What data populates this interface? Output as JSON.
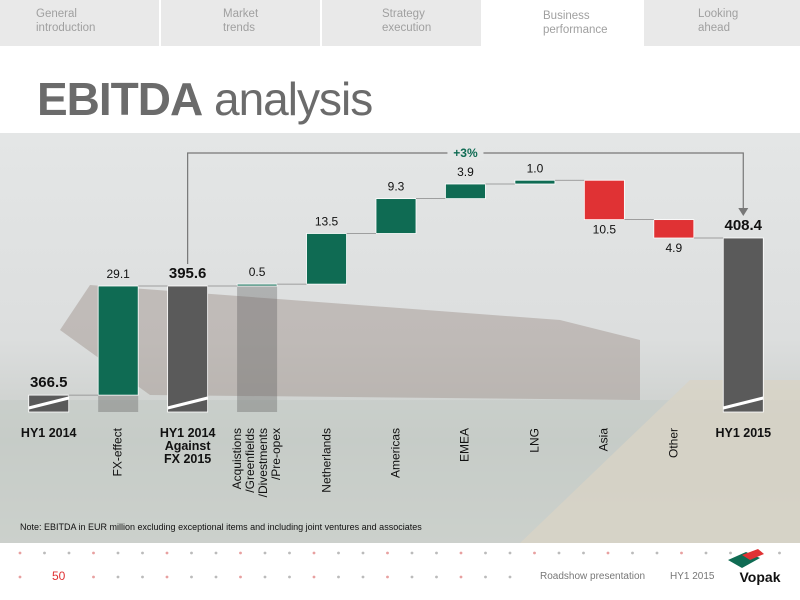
{
  "nav": [
    "General\nintroduction",
    "Market\ntrends",
    "Strategy\nexecution",
    "Business\nperformance",
    "Looking\nahead"
  ],
  "title_bold": "EBITDA",
  "title_rest": "analysis",
  "chart_data": {
    "type": "waterfall",
    "categories": [
      "HY1 2014",
      "FX-effect",
      "HY1 2014\nAgainst\nFX 2015",
      "Acquistions\n/Greenfields\n/Divestments\n/Pre-opex",
      "Netherlands",
      "Americas",
      "EMEA",
      "LNG",
      "Asia",
      "Other",
      "HY1 2015"
    ],
    "measure": [
      "total",
      "relative",
      "total",
      "relative",
      "relative",
      "relative",
      "relative",
      "relative",
      "relative",
      "relative",
      "total"
    ],
    "values": [
      366.5,
      29.1,
      395.6,
      0.5,
      13.5,
      9.3,
      3.9,
      1.0,
      -10.5,
      -4.9,
      408.4
    ],
    "value_labels": [
      "366.5",
      "29.1",
      "395.6",
      "0.5",
      "13.5",
      "9.3",
      "3.9",
      "1.0",
      "10.5",
      "4.9",
      "408.4"
    ],
    "colors": {
      "increase": "#0f6b53",
      "decrease": "#e03234",
      "total": "#5a5a5a"
    },
    "ylim": [
      362,
      430
    ],
    "annotation": "+3%"
  },
  "note": "Note: EBITDA in EUR million excluding exceptional items and including joint ventures and associates",
  "footer": {
    "page": "50",
    "presentation": "Roadshow presentation",
    "period": "HY1 2015",
    "brand": "Vopak"
  }
}
